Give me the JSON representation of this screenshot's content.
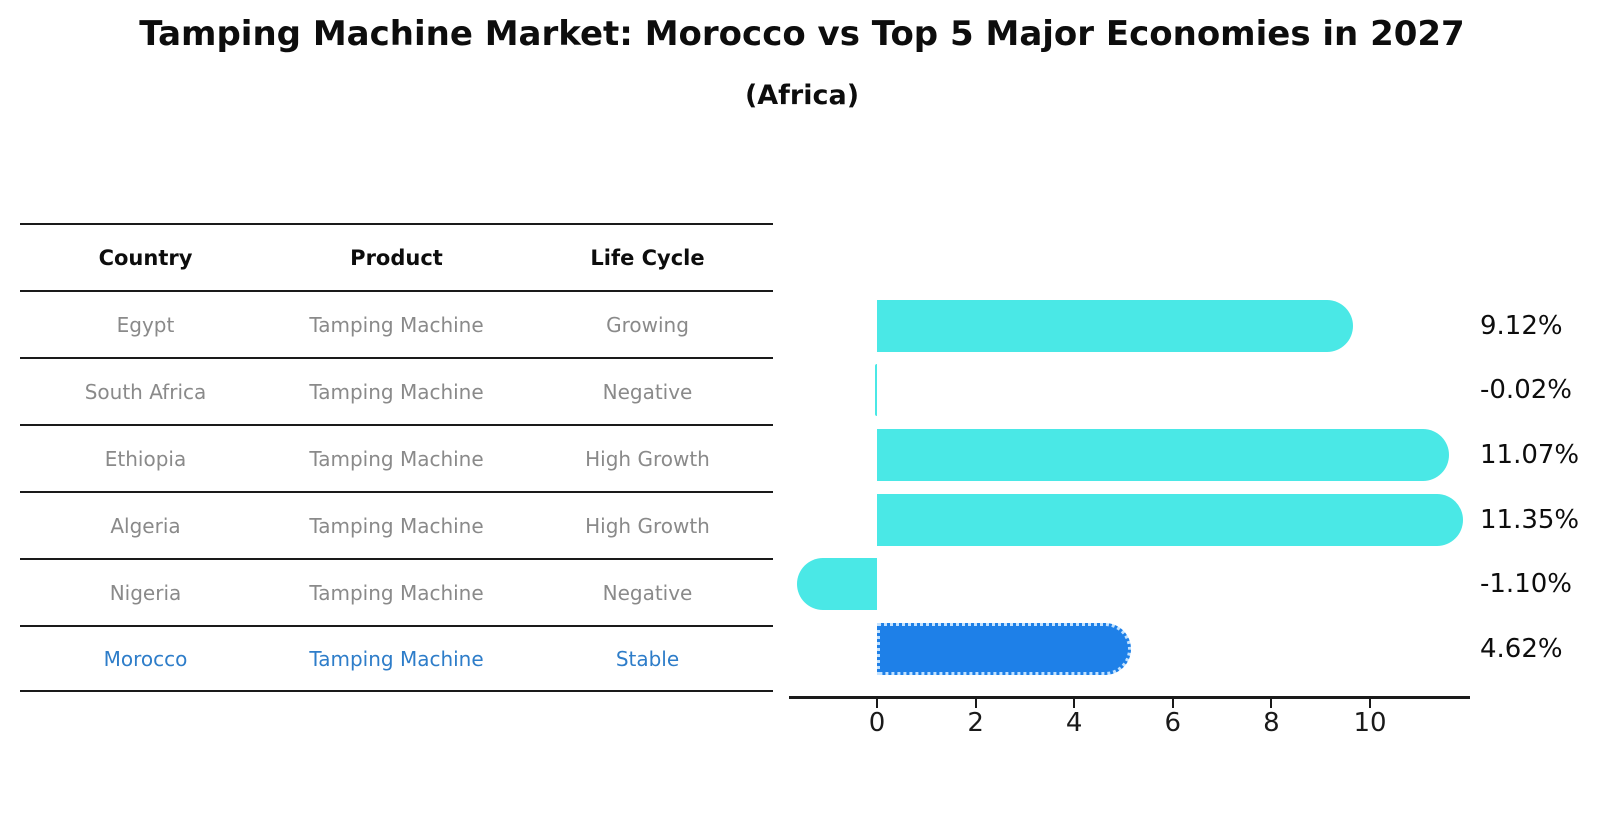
{
  "header": {
    "title": "Tamping Machine Market: Morocco vs Top 5 Major Economies in 2027",
    "subtitle": "(Africa)"
  },
  "table": {
    "columns": {
      "country": "Country",
      "product": "Product",
      "life_cycle": "Life Cycle"
    },
    "rows": [
      {
        "country": "Egypt",
        "product": "Tamping Machine",
        "life_cycle": "Growing",
        "highlight": false
      },
      {
        "country": "South Africa",
        "product": "Tamping Machine",
        "life_cycle": "Negative",
        "highlight": false
      },
      {
        "country": "Ethiopia",
        "product": "Tamping Machine",
        "life_cycle": "High Growth",
        "highlight": false
      },
      {
        "country": "Algeria",
        "product": "Tamping Machine",
        "life_cycle": "High Growth",
        "highlight": false
      },
      {
        "country": "Nigeria",
        "product": "Tamping Machine",
        "life_cycle": "Negative",
        "highlight": false
      },
      {
        "country": "Morocco",
        "product": "Tamping Machine",
        "life_cycle": "Stable",
        "highlight": true
      }
    ]
  },
  "chart_data": {
    "type": "bar",
    "orientation": "horizontal",
    "title": "Tamping Machine Market: Morocco vs Top 5 Major Economies in 2027",
    "subtitle": "(Africa)",
    "categories": [
      "Egypt",
      "South Africa",
      "Ethiopia",
      "Algeria",
      "Nigeria",
      "Morocco"
    ],
    "values": [
      9.12,
      -0.02,
      11.07,
      11.35,
      -1.1,
      4.62
    ],
    "value_labels": [
      "9.12%",
      "-0.02%",
      "11.07%",
      "11.35%",
      "-1.10%",
      "4.62%"
    ],
    "x_ticks": [
      "0",
      "2",
      "4",
      "6",
      "8",
      "10"
    ],
    "x_tick_values": [
      0,
      2,
      4,
      6,
      8,
      10
    ],
    "xlim": [
      -1.78,
      12.03
    ],
    "grid": false,
    "legend": false,
    "highlight_index": 5,
    "bar_color": "#4ae8e6",
    "highlight_bar_color": "#1e80e8",
    "highlight_text_color": "#2e7dc9",
    "row_text_color": "#8a8a8a",
    "text_color": "#0d0d0d"
  }
}
